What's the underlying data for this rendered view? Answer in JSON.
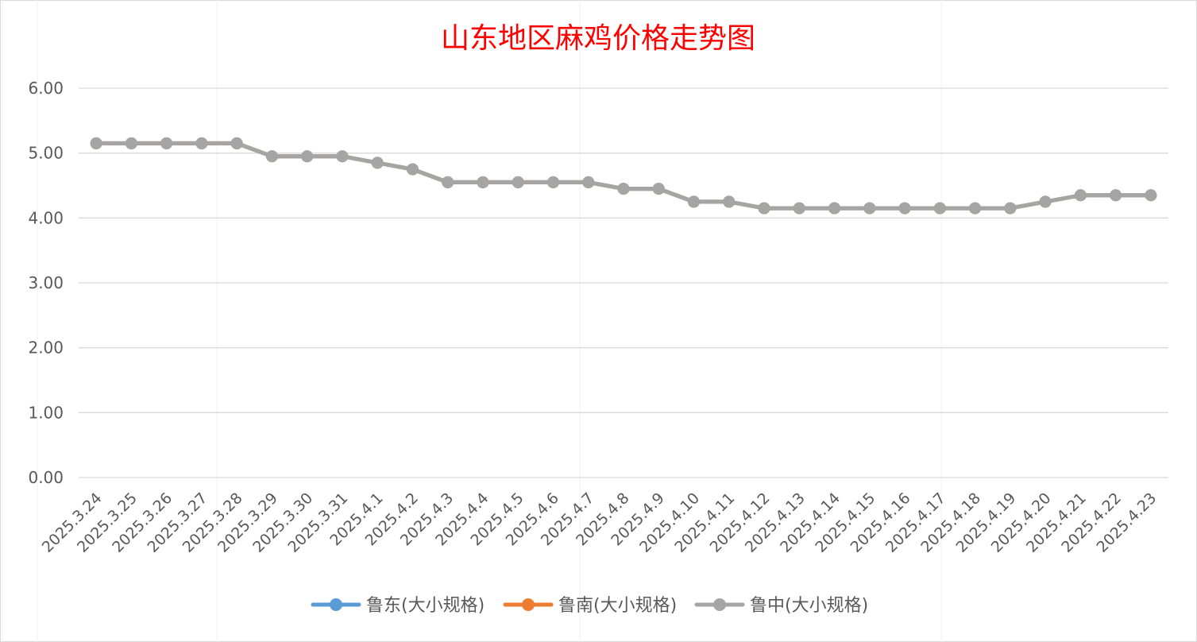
{
  "chart_data": {
    "type": "line",
    "title": "山东地区麻鸡价格走势图",
    "xlabel": "",
    "ylabel": "",
    "ylim": [
      0,
      6
    ],
    "yticks": [
      "0.00",
      "1.00",
      "2.00",
      "3.00",
      "4.00",
      "5.00",
      "6.00"
    ],
    "grid": true,
    "legend_position": "bottom",
    "categories": [
      "2025.3.24",
      "2025.3.25",
      "2025.3.26",
      "2025.3.27",
      "2025.3.28",
      "2025.3.29",
      "2025.3.30",
      "2025.3.31",
      "2025.4.1",
      "2025.4.2",
      "2025.4.3",
      "2025.4.4",
      "2025.4.5",
      "2025.4.6",
      "2025.4.7",
      "2025.4.8",
      "2025.4.9",
      "2025.4.10",
      "2025.4.11",
      "2025.4.12",
      "2025.4.13",
      "2025.4.14",
      "2025.4.15",
      "2025.4.16",
      "2025.4.17",
      "2025.4.18",
      "2025.4.19",
      "2025.4.20",
      "2025.4.21",
      "2025.4.22",
      "2025.4.23"
    ],
    "series": [
      {
        "name": "鲁东(大小规格)",
        "color": "#5b9bd5",
        "values": [
          5.15,
          5.15,
          5.15,
          5.15,
          5.15,
          4.95,
          4.95,
          4.95,
          4.85,
          4.75,
          4.55,
          4.55,
          4.55,
          4.55,
          4.55,
          4.45,
          4.45,
          4.25,
          4.25,
          4.15,
          4.15,
          4.15,
          4.15,
          4.15,
          4.15,
          4.15,
          4.15,
          4.25,
          4.35,
          4.35,
          4.35
        ]
      },
      {
        "name": "鲁南(大小规格)",
        "color": "#ed7d31",
        "values": [
          5.15,
          5.15,
          5.15,
          5.15,
          5.15,
          4.95,
          4.95,
          4.95,
          4.85,
          4.75,
          4.55,
          4.55,
          4.55,
          4.55,
          4.55,
          4.45,
          4.45,
          4.25,
          4.25,
          4.15,
          4.15,
          4.15,
          4.15,
          4.15,
          4.15,
          4.15,
          4.15,
          4.25,
          4.35,
          4.35,
          4.35
        ]
      },
      {
        "name": "鲁中(大小规格)",
        "color": "#a5a5a5",
        "values": [
          5.15,
          5.15,
          5.15,
          5.15,
          5.15,
          4.95,
          4.95,
          4.95,
          4.85,
          4.75,
          4.55,
          4.55,
          4.55,
          4.55,
          4.55,
          4.45,
          4.45,
          4.25,
          4.25,
          4.15,
          4.15,
          4.15,
          4.15,
          4.15,
          4.15,
          4.15,
          4.15,
          4.25,
          4.35,
          4.35,
          4.35
        ]
      }
    ]
  }
}
